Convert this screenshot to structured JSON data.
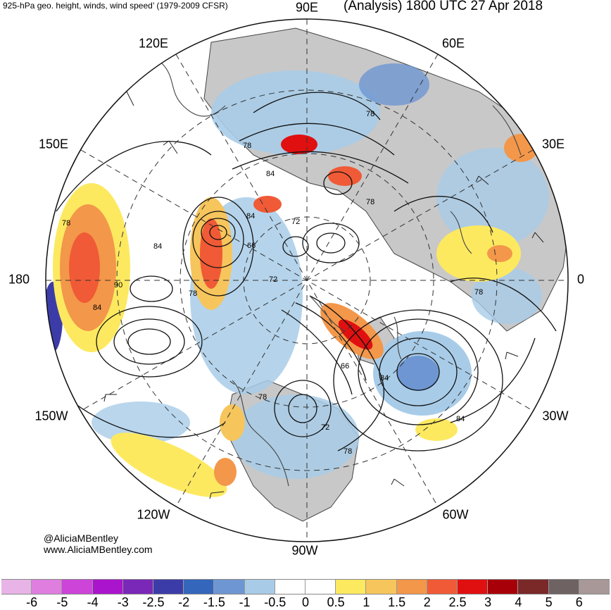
{
  "header": {
    "title_left": "925-hPa geo. height, winds, wind speed’ (1979-2009 CFSR)",
    "title_right": "(Analysis) 1800 UTC 27 Apr 2018"
  },
  "longitude_labels": {
    "lon_90e": "90E",
    "lon_120e": "120E",
    "lon_60e": "60E",
    "lon_150e": "150E",
    "lon_30e": "30E",
    "lon_180": "180",
    "lon_0": "0",
    "lon_150w": "150W",
    "lon_30w": "30W",
    "lon_120w": "120W",
    "lon_60w": "60W",
    "lon_90w": "90W"
  },
  "contour_labels": [
    "78",
    "84",
    "78",
    "84",
    "72",
    "66",
    "78",
    "84",
    "90",
    "78",
    "84",
    "72",
    "78",
    "78",
    "66",
    "84",
    "84",
    "78",
    "72",
    "78"
  ],
  "credit": {
    "handle": "@AliciaMBentley",
    "website": "www.AliciaMBentley.com"
  },
  "colorbar": {
    "colors": [
      "#e8b4e8",
      "#e07ee0",
      "#cc44d8",
      "#aa14cc",
      "#7a28b8",
      "#3c3ca8",
      "#3466bc",
      "#6e96d2",
      "#a8cce8",
      "#ffffff",
      "#ffffff",
      "#fde960",
      "#f6c55c",
      "#f3974a",
      "#f05a36",
      "#e01010",
      "#a80008",
      "#7a2828",
      "#6e6262",
      "#a89898"
    ],
    "ticks": [
      "-6",
      "-5",
      "-4",
      "-3",
      "-2.5",
      "-2",
      "-1.5",
      "-1",
      "-0.5",
      "0",
      "0.5",
      "1",
      "1.5",
      "2",
      "2.5",
      "3",
      "4",
      "5",
      "6"
    ]
  }
}
